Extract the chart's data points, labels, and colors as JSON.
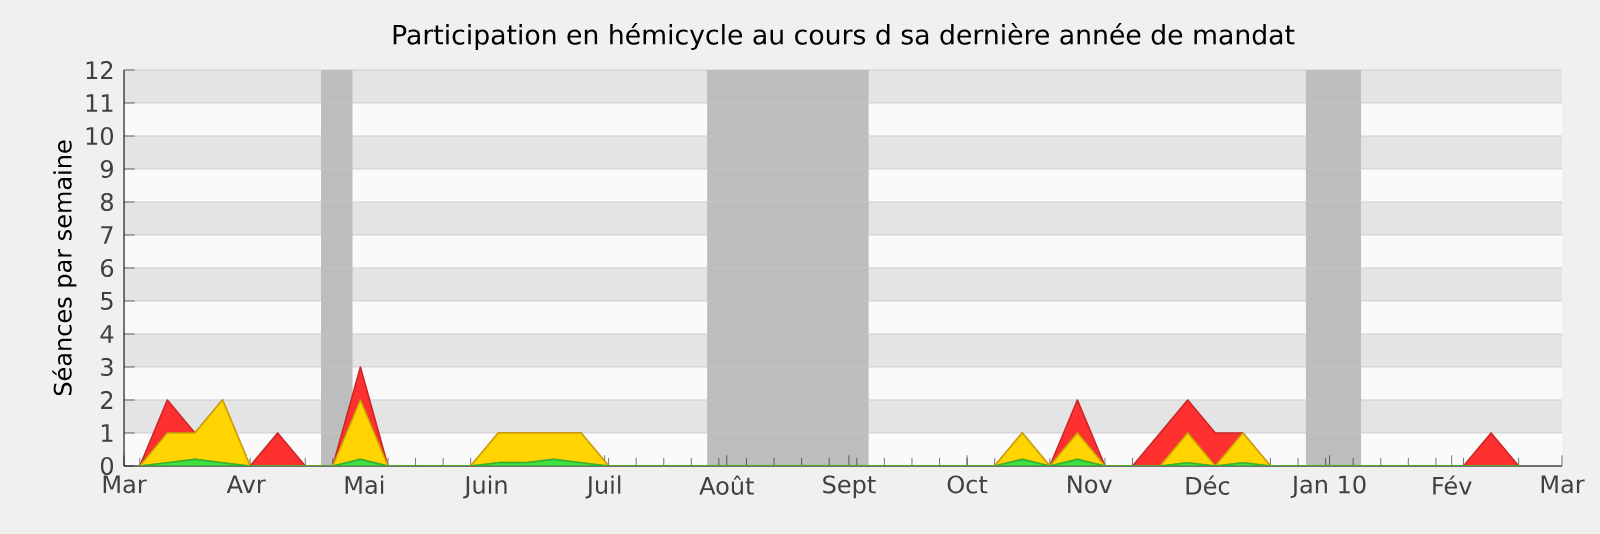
{
  "chart_data": {
    "type": "area",
    "title": "Participation en hémicycle au cours d sa dernière année de mandat",
    "ylabel": "Séances par semaine",
    "stacked": true,
    "grid": "y",
    "x": [
      "2009-03-05",
      "2009-03-12",
      "2009-03-19",
      "2009-03-26",
      "2009-04-02",
      "2009-04-09",
      "2009-04-16",
      "2009-04-23",
      "2009-04-30",
      "2009-05-07",
      "2009-05-14",
      "2009-05-21",
      "2009-05-28",
      "2009-06-04",
      "2009-06-11",
      "2009-06-18",
      "2009-06-25",
      "2009-07-02",
      "2009-07-09",
      "2009-07-16",
      "2009-07-23",
      "2009-07-30",
      "2009-08-06",
      "2009-08-13",
      "2009-08-20",
      "2009-08-27",
      "2009-09-03",
      "2009-09-10",
      "2009-09-17",
      "2009-09-24",
      "2009-10-01",
      "2009-10-08",
      "2009-10-15",
      "2009-10-22",
      "2009-10-29",
      "2009-11-05",
      "2009-11-12",
      "2009-11-19",
      "2009-11-26",
      "2009-12-03",
      "2009-12-10",
      "2009-12-17",
      "2009-12-24",
      "2009-12-31",
      "2010-01-07",
      "2010-01-14",
      "2010-01-21",
      "2010-01-28",
      "2010-02-04",
      "2010-02-11",
      "2010-02-18"
    ],
    "series": [
      {
        "color": "#40e040",
        "values": [
          0,
          0.1,
          0.2,
          0.1,
          0,
          0,
          0,
          0,
          0.2,
          0,
          0,
          0,
          0,
          0.1,
          0.1,
          0.2,
          0.1,
          0,
          0,
          0,
          0,
          0,
          0,
          0,
          0,
          0,
          0,
          0,
          0,
          0,
          0,
          0,
          0.2,
          0,
          0.2,
          0,
          0,
          0,
          0.1,
          0,
          0.1,
          0,
          0,
          0,
          0,
          0,
          0,
          0,
          0,
          0,
          0
        ]
      },
      {
        "color": "#ffd400",
        "values": [
          0,
          0.9,
          0.8,
          1.9,
          0,
          0,
          0,
          0,
          1.8,
          0,
          0,
          0,
          0,
          0.9,
          0.9,
          0.8,
          0.9,
          0,
          0,
          0,
          0,
          0,
          0,
          0,
          0,
          0,
          0,
          0,
          0,
          0,
          0,
          0,
          0.8,
          0,
          0.8,
          0,
          0,
          0,
          0.9,
          0,
          0.9,
          0,
          0,
          0,
          0,
          0,
          0,
          0,
          0,
          0,
          0
        ]
      },
      {
        "color": "#ff3030",
        "values": [
          0,
          1,
          0,
          0,
          0,
          1,
          0,
          0,
          1,
          0,
          0,
          0,
          0,
          0,
          0,
          0,
          0,
          0,
          0,
          0,
          0,
          0,
          0,
          0,
          0,
          0,
          0,
          0,
          0,
          0,
          0,
          0,
          0,
          0,
          1,
          0,
          0,
          1,
          1,
          1,
          0,
          0,
          0,
          0,
          0,
          0,
          0,
          0,
          0,
          1,
          0
        ]
      }
    ],
    "xlim": [
      "2009-03-01",
      "2010-03-01"
    ],
    "xticks": [
      {
        "value": "2009-03-01",
        "label": "Mar"
      },
      {
        "value": "2009-04-01",
        "label": "Avr"
      },
      {
        "value": "2009-05-01",
        "label": "Mai"
      },
      {
        "value": "2009-06-01",
        "label": "Juin"
      },
      {
        "value": "2009-07-01",
        "label": "Juil"
      },
      {
        "value": "2009-08-01",
        "label": "Août"
      },
      {
        "value": "2009-09-01",
        "label": "Sept"
      },
      {
        "value": "2009-10-01",
        "label": "Oct"
      },
      {
        "value": "2009-11-01",
        "label": "Nov"
      },
      {
        "value": "2009-12-01",
        "label": "Déc"
      },
      {
        "value": "2010-01-01",
        "label": "Jan 10"
      },
      {
        "value": "2010-02-01",
        "label": "Fév"
      },
      {
        "value": "2010-03-01",
        "label": "Mar"
      }
    ],
    "ylim": [
      0,
      12
    ],
    "yticks": [
      0,
      1,
      2,
      3,
      4,
      5,
      6,
      7,
      8,
      9,
      10,
      11,
      12
    ],
    "bands": [
      {
        "axis": "x",
        "from": "2009-04-20",
        "to": "2009-04-28",
        "color": "#bdbdbd"
      },
      {
        "axis": "x",
        "from": "2009-07-27",
        "to": "2009-09-06",
        "color": "#bdbdbd"
      },
      {
        "axis": "x",
        "from": "2009-12-26",
        "to": "2010-01-09",
        "color": "#bdbdbd"
      }
    ]
  }
}
